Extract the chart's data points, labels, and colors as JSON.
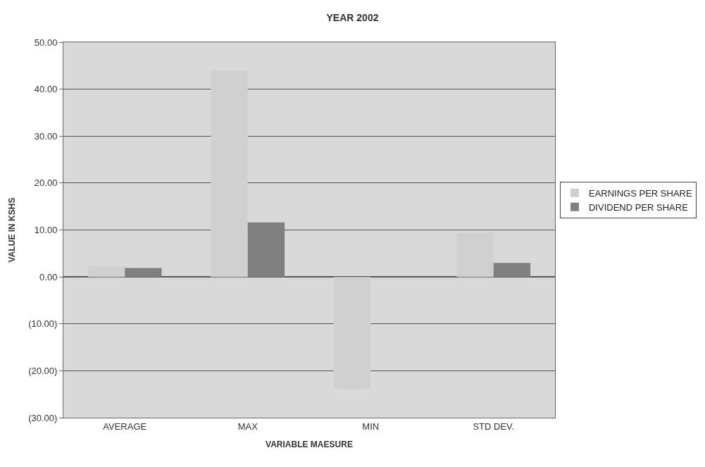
{
  "chart_data": {
    "type": "bar",
    "title": "YEAR 2002",
    "xlabel": "VARIABLE MAESURE",
    "ylabel": "VALUE IN KSHS",
    "categories": [
      "AVERAGE",
      "MAX",
      "MIN",
      "STD DEV."
    ],
    "series": [
      {
        "name": "EARNINGS PER SHARE",
        "color": "#d0d0d0",
        "values": [
          2.3,
          43.9,
          -23.9,
          9.4
        ]
      },
      {
        "name": "DIVIDEND PER SHARE",
        "color": "#808080",
        "values": [
          1.9,
          11.6,
          0,
          3.0
        ]
      }
    ],
    "ylim": [
      -30,
      50
    ],
    "yticks": [
      {
        "value": -30,
        "label": "(30.00)"
      },
      {
        "value": -20,
        "label": "(20.00)"
      },
      {
        "value": -10,
        "label": "(10.00)"
      },
      {
        "value": 0,
        "label": "0.00"
      },
      {
        "value": 10,
        "label": "10.00"
      },
      {
        "value": 20,
        "label": "20.00"
      },
      {
        "value": 30,
        "label": "30.00"
      },
      {
        "value": 40,
        "label": "40.00"
      },
      {
        "value": 50,
        "label": "50.00"
      }
    ],
    "grid": "y",
    "legend": "right"
  }
}
